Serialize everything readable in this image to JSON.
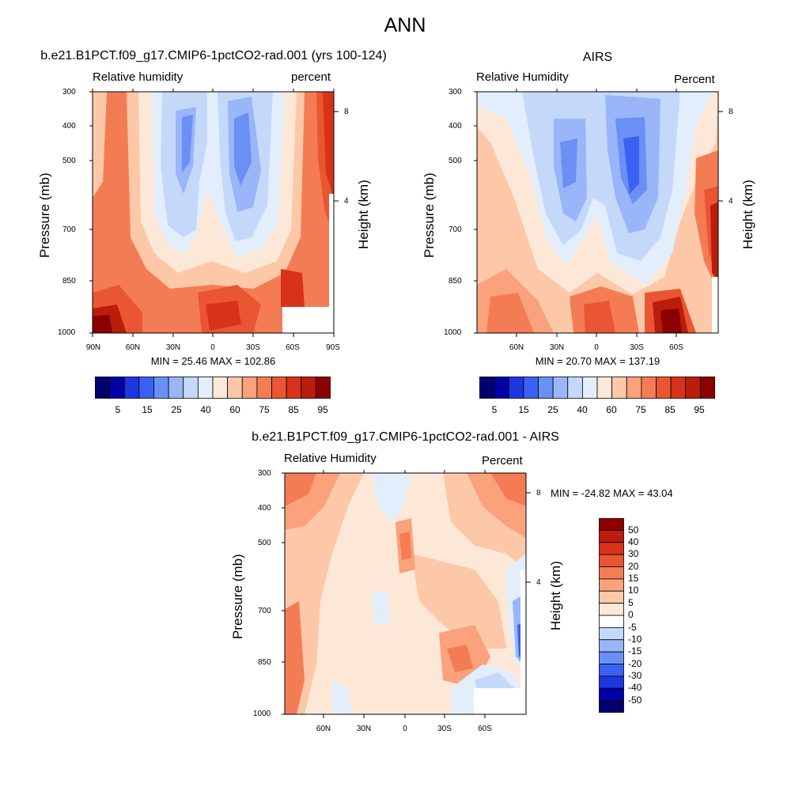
{
  "figure": {
    "title": "ANN"
  },
  "panels": [
    {
      "case_title": "b.e21.B1PCT.f09_g17.CMIP6-1pctCO2-rad.001 (yrs 100-124)",
      "left_label": "Relative humidity",
      "right_label": "percent",
      "ylabel": "Pressure (mb)",
      "ylabel_right": "Height (km)",
      "minmax": "MIN =  25.46  MAX = 102.86"
    },
    {
      "case_title": "AIRS",
      "left_label": "Relative Humidity",
      "right_label": "Percent",
      "ylabel": "Pressure (mb)",
      "ylabel_right": "Height (km)",
      "minmax": "MIN =  20.70  MAX = 137.19"
    },
    {
      "case_title": "b.e21.B1PCT.f09_g17.CMIP6-1pctCO2-rad.001 - AIRS",
      "left_label": "Relative Humidity",
      "right_label": "Percent",
      "ylabel": "Pressure (mb)",
      "ylabel_right": "Height (km)",
      "minmax": "MIN = -24.82  MAX =  43.04"
    }
  ],
  "chart_data": [
    {
      "type": "heatmap",
      "title": "b.e21.B1PCT.f09_g17.CMIP6-1pctCO2-rad.001 (yrs 100-124)",
      "field": "Relative humidity",
      "units": "percent",
      "ylabel": "Pressure (mb)",
      "ylabel_right": "Height (km)",
      "y_ticks": [
        "300",
        "400",
        "500",
        "700",
        "850",
        "1000"
      ],
      "y_right_ticks": [
        "8",
        "4"
      ],
      "x_ticks": [
        "90N",
        "60N",
        "30N",
        "0",
        "30S",
        "60S",
        "90S"
      ],
      "min": 25.46,
      "max": 102.86,
      "colorbar_ticks": [
        "5",
        "15",
        "25",
        "40",
        "60",
        "75",
        "85",
        "95"
      ],
      "colorbar_colors": [
        "#03006d",
        "#0000a8",
        "#1d36e0",
        "#3b61f2",
        "#6a8ff5",
        "#9ab5f8",
        "#c4d8fa",
        "#e2eefc",
        "#fde8d8",
        "#fcc8a8",
        "#f9a27c",
        "#f47c55",
        "#ea5632",
        "#d8331a",
        "#bc1c0c",
        "#8b0000"
      ],
      "colorbar_orientation": "horizontal"
    },
    {
      "type": "heatmap",
      "title": "AIRS",
      "field": "Relative Humidity",
      "units": "Percent",
      "ylabel": "Pressure (mb)",
      "ylabel_right": "Height (km)",
      "y_ticks": [
        "300",
        "400",
        "500",
        "700",
        "850",
        "1000"
      ],
      "y_right_ticks": [
        "8",
        "4"
      ],
      "x_ticks": [
        "60N",
        "30N",
        "0",
        "30S",
        "60S"
      ],
      "min": 20.7,
      "max": 137.19,
      "colorbar_ticks": [
        "5",
        "15",
        "25",
        "40",
        "60",
        "75",
        "85",
        "95"
      ],
      "colorbar_colors": [
        "#03006d",
        "#0000a8",
        "#1d36e0",
        "#3b61f2",
        "#6a8ff5",
        "#9ab5f8",
        "#c4d8fa",
        "#e2eefc",
        "#fde8d8",
        "#fcc8a8",
        "#f9a27c",
        "#f47c55",
        "#ea5632",
        "#d8331a",
        "#bc1c0c",
        "#8b0000"
      ],
      "colorbar_orientation": "horizontal"
    },
    {
      "type": "heatmap",
      "title": "b.e21.B1PCT.f09_g17.CMIP6-1pctCO2-rad.001 - AIRS",
      "field": "Relative Humidity",
      "units": "Percent",
      "ylabel": "Pressure (mb)",
      "ylabel_right": "Height (km)",
      "y_ticks": [
        "300",
        "400",
        "500",
        "700",
        "850",
        "1000"
      ],
      "y_right_ticks": [
        "8",
        "4"
      ],
      "x_ticks": [
        "60N",
        "30N",
        "0",
        "30S",
        "60S"
      ],
      "min": -24.82,
      "max": 43.04,
      "colorbar_ticks": [
        "50",
        "40",
        "30",
        "20",
        "15",
        "10",
        "5",
        "0",
        "-5",
        "-10",
        "-15",
        "-20",
        "-30",
        "-40",
        "-50"
      ],
      "colorbar_colors": [
        "#8b0000",
        "#bc1c0c",
        "#d8331a",
        "#ea5632",
        "#f47c55",
        "#f9a27c",
        "#fcc8a8",
        "#fde8d8",
        "#ffffff",
        "#c4d8fa",
        "#9ab5f8",
        "#6a8ff5",
        "#3b61f2",
        "#1d36e0",
        "#0000a8",
        "#03006d"
      ],
      "colorbar_orientation": "vertical"
    }
  ]
}
